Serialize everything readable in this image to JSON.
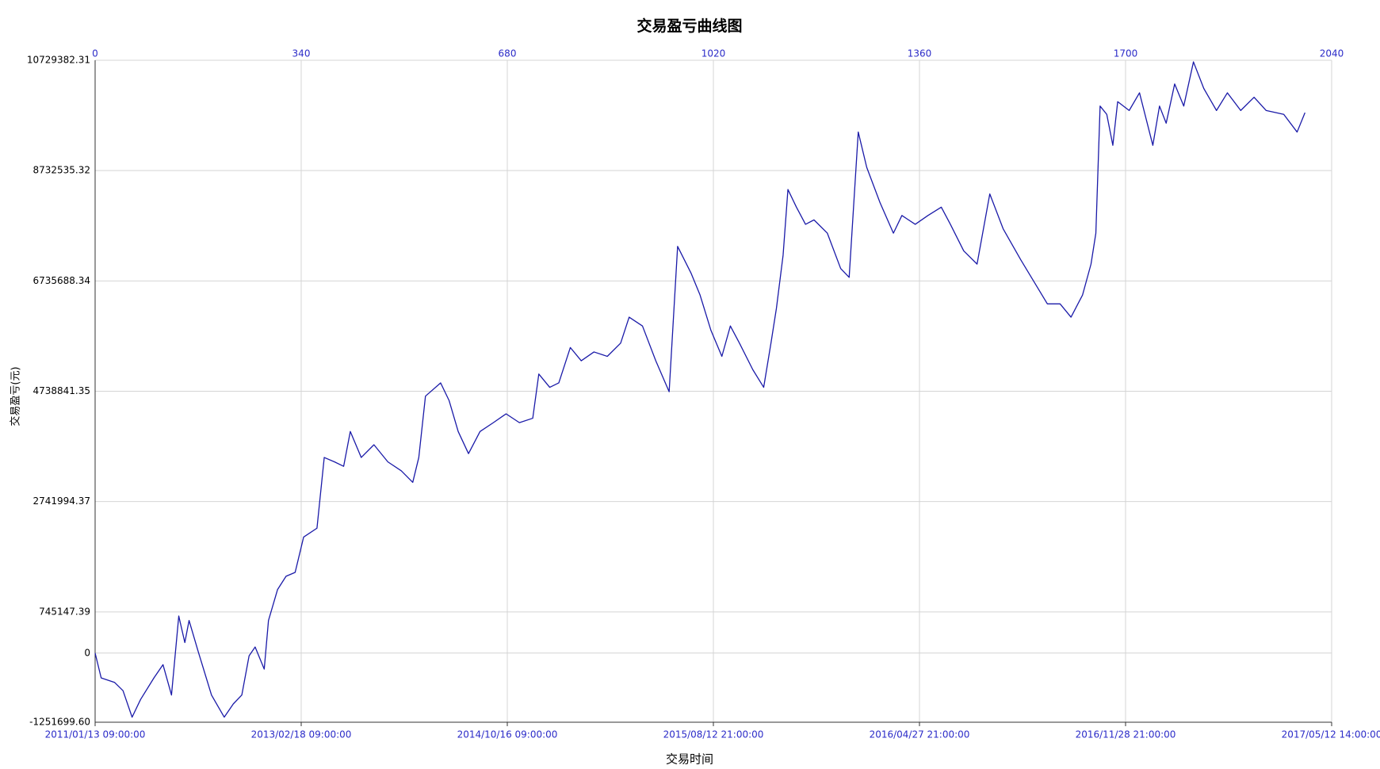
{
  "chart_data": {
    "type": "line",
    "title": "交易盈亏曲线图",
    "xlabel": "交易时间",
    "ylabel": "交易盈亏(元)",
    "color": "#1a1aa8",
    "tick_color": "#2b2bc8",
    "grid": true,
    "xlim": [
      0,
      2040
    ],
    "x2ticks": [
      0,
      340,
      680,
      1020,
      1360,
      1700,
      2040
    ],
    "xticks": [
      {
        "value": 0,
        "label": "2011/01/13 09:00:00"
      },
      {
        "value": 340,
        "label": "2013/02/18 09:00:00"
      },
      {
        "value": 680,
        "label": "2014/10/16 09:00:00"
      },
      {
        "value": 1020,
        "label": "2015/08/12 21:00:00"
      },
      {
        "value": 1360,
        "label": "2016/04/27 21:00:00"
      },
      {
        "value": 1700,
        "label": "2016/11/28 21:00:00"
      },
      {
        "value": 2040,
        "label": "2017/05/12 14:00:00"
      }
    ],
    "ylim": [
      -1251699.6,
      10729382.31
    ],
    "yticks": [
      {
        "value": -1251699.6,
        "label": "-1251699.60"
      },
      0,
      745147.39,
      2741994.37,
      4738841.35,
      6735688.34,
      8732535.32,
      10729382.31
    ],
    "x": [
      0,
      10,
      32,
      46,
      61,
      75,
      97,
      112,
      126,
      138,
      148,
      155,
      170,
      192,
      213,
      228,
      242,
      254,
      264,
      279,
      286,
      301,
      315,
      330,
      344,
      366,
      378,
      395,
      410,
      421,
      439,
      460,
      483,
      505,
      524,
      534,
      545,
      570,
      584,
      599,
      616,
      635,
      657,
      678,
      700,
      722,
      732,
      750,
      765,
      784,
      802,
      823,
      845,
      867,
      881,
      903,
      925,
      947,
      961,
      983,
      998,
      1016,
      1034,
      1048,
      1063,
      1085,
      1103,
      1115,
      1124,
      1135,
      1143,
      1157,
      1172,
      1186,
      1208,
      1230,
      1244,
      1259,
      1273,
      1295,
      1317,
      1331,
      1353,
      1374,
      1396,
      1411,
      1433,
      1455,
      1476,
      1498,
      1527,
      1549,
      1571,
      1592,
      1610,
      1629,
      1643,
      1651,
      1658,
      1669,
      1679,
      1687,
      1706,
      1723,
      1745,
      1756,
      1767,
      1781,
      1796,
      1812,
      1829,
      1850,
      1868,
      1890,
      1912,
      1932,
      1961,
      1983,
      1996
    ],
    "values": [
      0,
      -450000,
      -530000,
      -680000,
      -1160000,
      -840000,
      -450000,
      -210000,
      -760000,
      670000,
      190000,
      590000,
      30000,
      -760000,
      -1160000,
      -920000,
      -760000,
      -50000,
      110000,
      -290000,
      590000,
      1150000,
      1390000,
      1460000,
      2100000,
      2260000,
      3540000,
      3460000,
      3380000,
      4010000,
      3540000,
      3770000,
      3460000,
      3300000,
      3090000,
      3540000,
      4650000,
      4890000,
      4570000,
      4010000,
      3610000,
      4010000,
      4170000,
      4330000,
      4170000,
      4250000,
      5050000,
      4810000,
      4890000,
      5530000,
      5290000,
      5450000,
      5370000,
      5610000,
      6080000,
      5920000,
      5290000,
      4730000,
      7360000,
      6880000,
      6480000,
      5840000,
      5370000,
      5920000,
      5610000,
      5130000,
      4810000,
      5610000,
      6240000,
      7200000,
      8390000,
      8070000,
      7760000,
      7840000,
      7600000,
      6960000,
      6800000,
      9430000,
      8790000,
      8150000,
      7600000,
      7920000,
      7760000,
      7920000,
      8070000,
      7760000,
      7280000,
      7040000,
      8310000,
      7680000,
      7120000,
      6720000,
      6320000,
      6320000,
      6080000,
      6480000,
      7040000,
      7600000,
      9900000,
      9750000,
      9190000,
      9980000,
      9820000,
      10140000,
      9190000,
      9900000,
      9590000,
      10300000,
      9900000,
      10700000,
      10220000,
      9820000,
      10140000,
      9820000,
      10060000,
      9820000,
      9750000,
      9430000,
      9780000
    ]
  }
}
